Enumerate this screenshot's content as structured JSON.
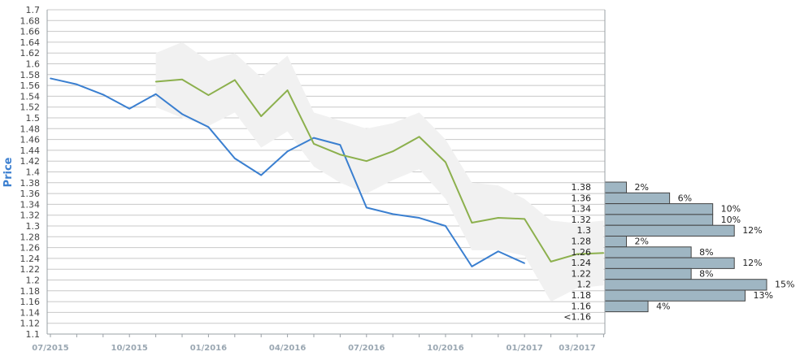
{
  "chart_data": {
    "type": "line",
    "ylabel": "Price",
    "ylim": [
      1.1,
      1.7
    ],
    "y_ticks": [
      "1.1",
      "1.12",
      "1.14",
      "1.16",
      "1.18",
      "1.2",
      "1.22",
      "1.24",
      "1.26",
      "1.28",
      "1.3",
      "1.32",
      "1.34",
      "1.36",
      "1.38",
      "1.4",
      "1.42",
      "1.44",
      "1.46",
      "1.48",
      "1.5",
      "1.52",
      "1.54",
      "1.56",
      "1.58",
      "1.6",
      "1.62",
      "1.64",
      "1.66",
      "1.68",
      "1.7"
    ],
    "x_labels": [
      "07/2015",
      "10/2015",
      "01/2016",
      "04/2016",
      "07/2016",
      "10/2016",
      "01/2017",
      "03/2017"
    ],
    "x_label_months": [
      0,
      3,
      6,
      9,
      12,
      15,
      18,
      20
    ],
    "x_range_months": [
      0,
      21
    ],
    "grid": true,
    "series": [
      {
        "color": "#3a7fd0",
        "x_months": [
          0,
          1,
          2,
          3,
          4,
          5,
          6,
          7,
          8,
          9,
          10,
          11,
          12,
          13,
          14,
          15,
          16,
          17,
          18
        ],
        "values": [
          1.573,
          1.562,
          1.543,
          1.517,
          1.544,
          1.507,
          1.483,
          1.425,
          1.394,
          1.438,
          1.463,
          1.45,
          1.334,
          1.322,
          1.315,
          1.3,
          1.225,
          1.253,
          1.231
        ]
      },
      {
        "color": "#8cb04d",
        "x_months": [
          4,
          5,
          6,
          7,
          8,
          9,
          10,
          11,
          12,
          13,
          14,
          15,
          16,
          17,
          18,
          19,
          20,
          21
        ],
        "values": [
          1.567,
          1.571,
          1.542,
          1.57,
          1.503,
          1.551,
          1.452,
          1.432,
          1.42,
          1.438,
          1.465,
          1.418,
          1.306,
          1.315,
          1.313,
          1.234,
          1.248,
          1.25
        ]
      }
    ],
    "band": {
      "color": "#f1f1f1",
      "x_months": [
        4,
        5,
        6,
        7,
        8,
        9,
        10,
        11,
        12,
        13,
        14,
        15,
        16,
        17,
        18,
        19,
        20,
        21
      ],
      "upper": [
        1.62,
        1.64,
        1.605,
        1.62,
        1.575,
        1.615,
        1.51,
        1.495,
        1.48,
        1.49,
        1.51,
        1.46,
        1.38,
        1.375,
        1.35,
        1.31,
        1.305,
        1.31
      ],
      "lower": [
        1.52,
        1.5,
        1.485,
        1.51,
        1.445,
        1.475,
        1.41,
        1.38,
        1.36,
        1.385,
        1.405,
        1.35,
        1.255,
        1.255,
        1.245,
        1.16,
        1.185,
        1.19
      ]
    },
    "histogram": {
      "color": "#9fb6c3",
      "border": "#444444",
      "bins": [
        {
          "label": "1.38",
          "pct": 2,
          "pct_label": "2%"
        },
        {
          "label": "1.36",
          "pct": 6,
          "pct_label": "6%"
        },
        {
          "label": "1.34",
          "pct": 10,
          "pct_label": "10%"
        },
        {
          "label": "1.32",
          "pct": 10,
          "pct_label": "10%"
        },
        {
          "label": "1.3",
          "pct": 12,
          "pct_label": "12%"
        },
        {
          "label": "1.28",
          "pct": 2,
          "pct_label": "2%"
        },
        {
          "label": "1.26",
          "pct": 8,
          "pct_label": "8%"
        },
        {
          "label": "1.24",
          "pct": 12,
          "pct_label": "12%"
        },
        {
          "label": "1.22",
          "pct": 8,
          "pct_label": "8%"
        },
        {
          "label": "1.2",
          "pct": 15,
          "pct_label": "15%"
        },
        {
          "label": "1.18",
          "pct": 13,
          "pct_label": "13%"
        },
        {
          "label": "1.16",
          "pct": 4,
          "pct_label": "4%"
        },
        {
          "label": "<1.16",
          "pct": null,
          "pct_label": ""
        }
      ]
    }
  }
}
